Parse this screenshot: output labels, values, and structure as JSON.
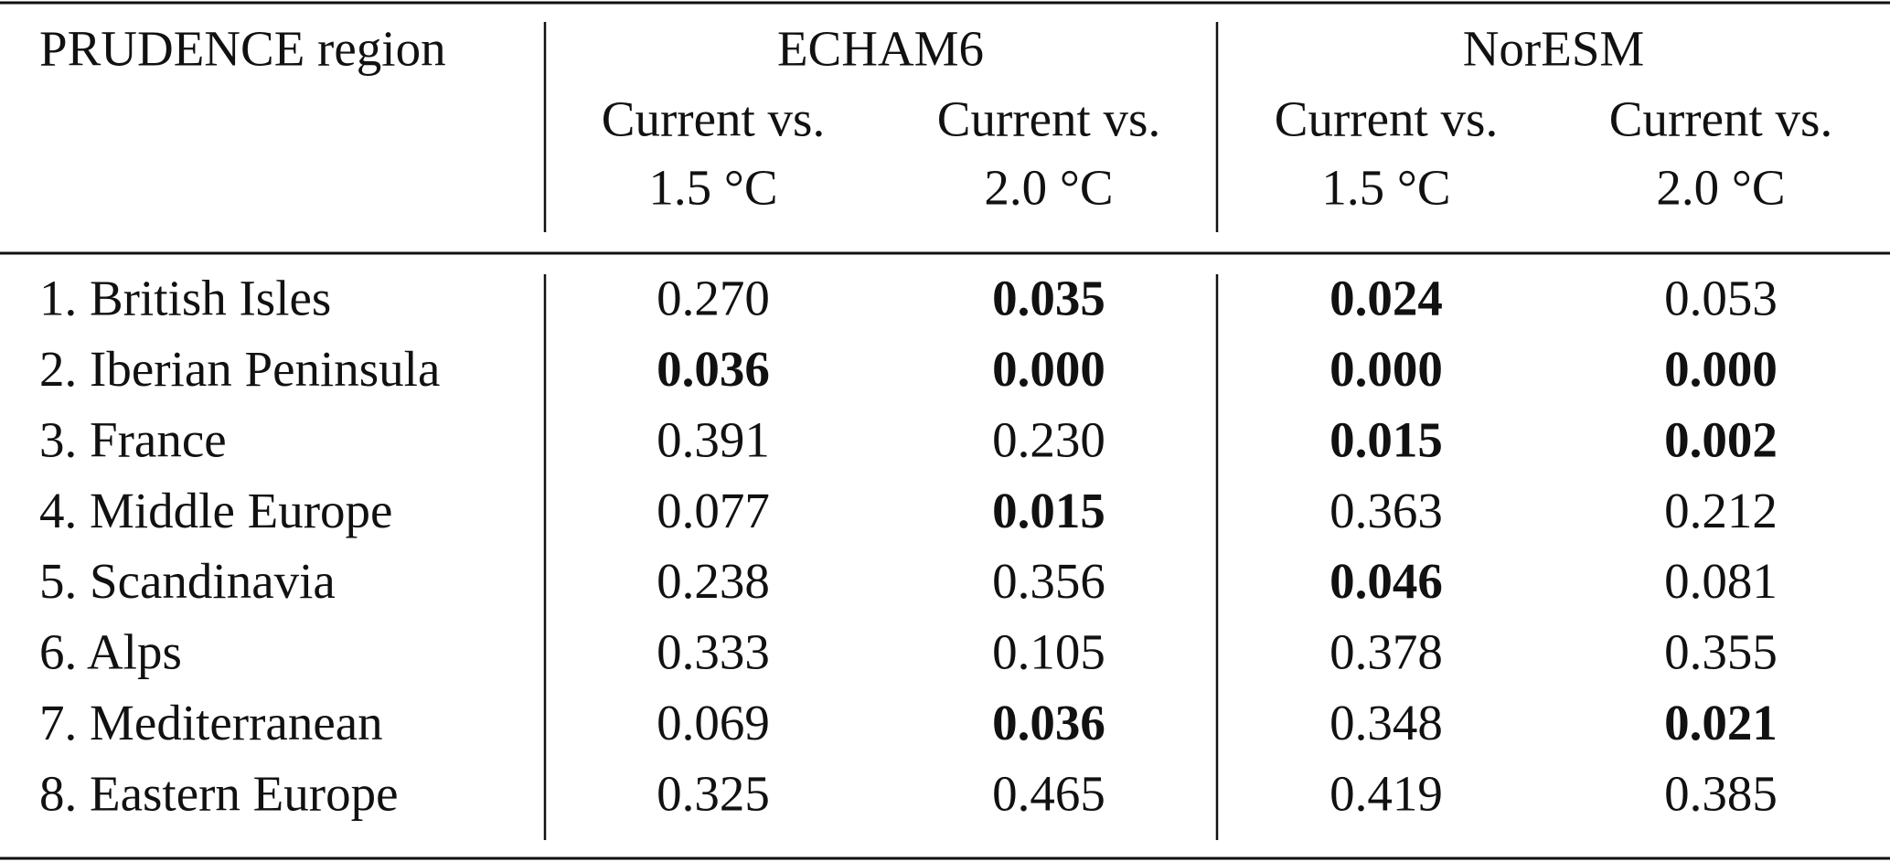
{
  "table": {
    "header": {
      "first": "PRUDENCE region",
      "groups": [
        "ECHAM6",
        "NorESM"
      ],
      "subheaders": [
        [
          "Current vs.",
          "1.5 °C"
        ],
        [
          "Current vs.",
          "2.0 °C"
        ],
        [
          "Current vs.",
          "1.5 °C"
        ],
        [
          "Current vs.",
          "2.0 °C"
        ]
      ]
    },
    "rows": [
      {
        "region": "1. British Isles",
        "values": [
          "0.270",
          "0.035",
          "0.024",
          "0.053"
        ],
        "bold": [
          false,
          true,
          true,
          false
        ]
      },
      {
        "region": "2. Iberian Peninsula",
        "values": [
          "0.036",
          "0.000",
          "0.000",
          "0.000"
        ],
        "bold": [
          true,
          true,
          true,
          true
        ]
      },
      {
        "region": "3. France",
        "values": [
          "0.391",
          "0.230",
          "0.015",
          "0.002"
        ],
        "bold": [
          false,
          false,
          true,
          true
        ]
      },
      {
        "region": "4. Middle Europe",
        "values": [
          "0.077",
          "0.015",
          "0.363",
          "0.212"
        ],
        "bold": [
          false,
          true,
          false,
          false
        ]
      },
      {
        "region": "5. Scandinavia",
        "values": [
          "0.238",
          "0.356",
          "0.046",
          "0.081"
        ],
        "bold": [
          false,
          false,
          true,
          false
        ]
      },
      {
        "region": "6. Alps",
        "values": [
          "0.333",
          "0.105",
          "0.378",
          "0.355"
        ],
        "bold": [
          false,
          false,
          false,
          false
        ]
      },
      {
        "region": "7. Mediterranean",
        "values": [
          "0.069",
          "0.036",
          "0.348",
          "0.021"
        ],
        "bold": [
          false,
          true,
          false,
          true
        ]
      },
      {
        "region": "8. Eastern Europe",
        "values": [
          "0.325",
          "0.465",
          "0.419",
          "0.385"
        ],
        "bold": [
          false,
          false,
          false,
          false
        ]
      }
    ]
  }
}
